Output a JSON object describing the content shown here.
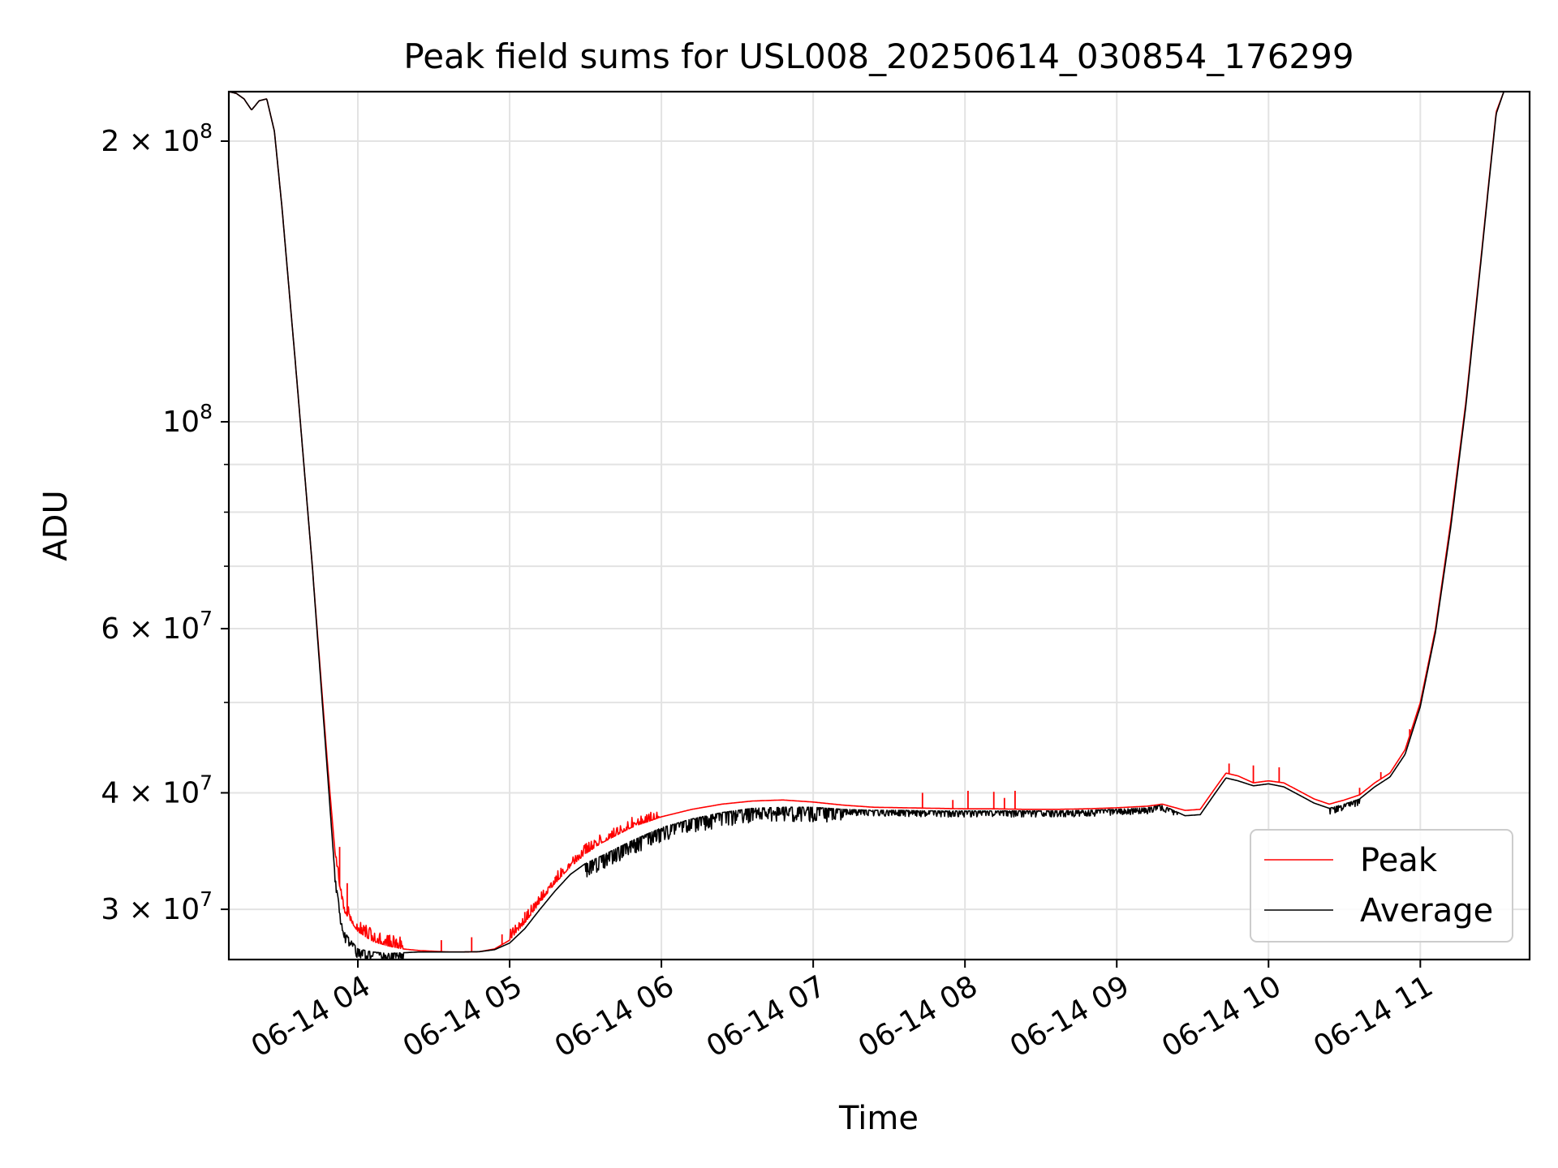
{
  "chart_data": {
    "type": "line",
    "title": "Peak field sums for USL008_20250614_030854_176299",
    "xlabel": "Time",
    "ylabel": "ADU",
    "yscale": "log",
    "ylim": [
      26500000,
      226000000
    ],
    "xlim_hours": [
      3.15,
      11.72
    ],
    "grid": true,
    "legend_position": "lower-right",
    "x_ticks": [
      {
        "hour": 4,
        "label": "06-14 04"
      },
      {
        "hour": 5,
        "label": "06-14 05"
      },
      {
        "hour": 6,
        "label": "06-14 06"
      },
      {
        "hour": 7,
        "label": "06-14 07"
      },
      {
        "hour": 8,
        "label": "06-14 08"
      },
      {
        "hour": 9,
        "label": "06-14 09"
      },
      {
        "hour": 10,
        "label": "06-14 10"
      },
      {
        "hour": 11,
        "label": "06-14 11"
      }
    ],
    "y_ticks_major": [
      {
        "value": 30000000,
        "mantissa": "3 × 10",
        "exp": "7"
      },
      {
        "value": 40000000,
        "mantissa": "4 × 10",
        "exp": "7"
      },
      {
        "value": 60000000,
        "mantissa": "6 × 10",
        "exp": "7"
      },
      {
        "value": 100000000,
        "mantissa": "10",
        "exp": "8"
      },
      {
        "value": 200000000,
        "mantissa": "2 × 10",
        "exp": "8"
      }
    ],
    "y_ticks_minor": [
      50000000,
      70000000,
      80000000,
      90000000
    ],
    "series": [
      {
        "name": "Peak",
        "color": "#ff0000",
        "hours": [
          3.15,
          3.2,
          3.25,
          3.3,
          3.35,
          3.4,
          3.45,
          3.5,
          3.6,
          3.7,
          3.8,
          3.85,
          3.9,
          4.0,
          4.1,
          4.2,
          4.3,
          4.4,
          4.5,
          4.6,
          4.7,
          4.8,
          4.9,
          5.0,
          5.1,
          5.2,
          5.3,
          5.4,
          5.5,
          5.6,
          5.8,
          6.0,
          6.2,
          6.4,
          6.6,
          6.8,
          7.0,
          7.2,
          7.4,
          7.6,
          7.8,
          8.0,
          8.2,
          8.4,
          8.6,
          8.8,
          9.0,
          9.2,
          9.3,
          9.45,
          9.55,
          9.65,
          9.72,
          9.8,
          9.9,
          10.0,
          10.1,
          10.2,
          10.3,
          10.4,
          10.5,
          10.6,
          10.7,
          10.8,
          10.9,
          11.0,
          11.1,
          11.2,
          11.3,
          11.4,
          11.45,
          11.5,
          11.55,
          11.6,
          11.72
        ],
        "values": [
          226000000,
          225000000,
          222000000,
          216000000,
          221000000,
          222000000,
          205000000,
          170000000,
          110000000,
          70000000,
          43000000,
          34500000,
          30000000,
          28400000,
          27700000,
          27400000,
          27200000,
          27100000,
          27050000,
          27000000,
          27000000,
          27020000,
          27200000,
          27800000,
          29000000,
          30500000,
          32000000,
          33300000,
          34400000,
          35300000,
          36700000,
          37700000,
          38400000,
          38900000,
          39200000,
          39300000,
          39100000,
          38800000,
          38600000,
          38550000,
          38500000,
          38450000,
          38450000,
          38400000,
          38400000,
          38450000,
          38550000,
          38700000,
          38900000,
          38300000,
          38400000,
          40500000,
          42000000,
          41700000,
          41000000,
          41200000,
          41000000,
          40200000,
          39400000,
          38900000,
          39300000,
          39800000,
          41000000,
          42000000,
          44500000,
          50000000,
          60000000,
          78000000,
          105000000,
          150000000,
          180000000,
          215000000,
          226000000,
          226000000,
          226000000
        ],
        "spikes": [
          {
            "hour": 3.88,
            "value": 35000000
          },
          {
            "hour": 3.93,
            "value": 32000000
          },
          {
            "hour": 4.55,
            "value": 27800000
          },
          {
            "hour": 4.75,
            "value": 28000000
          },
          {
            "hour": 4.95,
            "value": 28200000
          },
          {
            "hour": 5.1,
            "value": 29800000
          },
          {
            "hour": 5.3,
            "value": 32500000
          },
          {
            "hour": 5.5,
            "value": 35000000
          },
          {
            "hour": 7.72,
            "value": 40000000
          },
          {
            "hour": 7.92,
            "value": 39300000
          },
          {
            "hour": 8.02,
            "value": 40200000
          },
          {
            "hour": 8.19,
            "value": 40100000
          },
          {
            "hour": 8.26,
            "value": 39500000
          },
          {
            "hour": 8.33,
            "value": 40200000
          },
          {
            "hour": 9.74,
            "value": 43000000
          },
          {
            "hour": 9.9,
            "value": 42800000
          },
          {
            "hour": 10.07,
            "value": 42600000
          },
          {
            "hour": 10.6,
            "value": 40500000
          },
          {
            "hour": 10.74,
            "value": 42100000
          },
          {
            "hour": 10.93,
            "value": 46800000
          }
        ],
        "noise_regions": [
          {
            "from": 3.85,
            "to": 4.3,
            "amplitude": 0.03,
            "direction": "up"
          },
          {
            "from": 5.0,
            "to": 6.0,
            "amplitude": 0.025,
            "direction": "up"
          }
        ]
      },
      {
        "name": "Average",
        "color": "#000000",
        "hours": [
          3.15,
          3.2,
          3.25,
          3.3,
          3.35,
          3.4,
          3.45,
          3.5,
          3.6,
          3.7,
          3.8,
          3.85,
          3.9,
          4.0,
          4.1,
          4.2,
          4.3,
          4.4,
          4.5,
          4.6,
          4.7,
          4.8,
          4.9,
          5.0,
          5.1,
          5.2,
          5.3,
          5.4,
          5.5,
          5.6,
          5.8,
          6.0,
          6.2,
          6.4,
          6.6,
          6.8,
          7.0,
          7.2,
          7.4,
          7.6,
          7.8,
          8.0,
          8.2,
          8.4,
          8.6,
          8.8,
          9.0,
          9.2,
          9.3,
          9.45,
          9.55,
          9.65,
          9.72,
          9.8,
          9.9,
          10.0,
          10.1,
          10.2,
          10.3,
          10.4,
          10.5,
          10.6,
          10.7,
          10.8,
          10.9,
          11.0,
          11.1,
          11.2,
          11.3,
          11.4,
          11.45,
          11.5,
          11.55,
          11.6,
          11.72
        ],
        "values": [
          226000000,
          225000000,
          222000000,
          216000000,
          221000000,
          222000000,
          205000000,
          170000000,
          110000000,
          70000000,
          42000000,
          32500000,
          28500000,
          27200000,
          27000000,
          26900000,
          26950000,
          27000000,
          27000000,
          27000000,
          27000000,
          27020000,
          27150000,
          27600000,
          28600000,
          30000000,
          31400000,
          32700000,
          33600000,
          34200000,
          35500000,
          36700000,
          37500000,
          38100000,
          38500000,
          38600000,
          38600000,
          38400000,
          38300000,
          38300000,
          38250000,
          38250000,
          38250000,
          38250000,
          38250000,
          38300000,
          38400000,
          38550000,
          38800000,
          37800000,
          37900000,
          40000000,
          41500000,
          41200000,
          40700000,
          40900000,
          40600000,
          39800000,
          39000000,
          38500000,
          38900000,
          39400000,
          40600000,
          41600000,
          44000000,
          49500000,
          59500000,
          77000000,
          104000000,
          149000000,
          179000000,
          214000000,
          226000000,
          226000000,
          226000000
        ],
        "noise_regions": [
          {
            "from": 3.85,
            "to": 4.3,
            "amplitude": 0.025,
            "direction": "down"
          },
          {
            "from": 5.5,
            "to": 7.2,
            "amplitude": 0.035,
            "direction": "down"
          },
          {
            "from": 7.2,
            "to": 9.4,
            "amplitude": 0.015,
            "direction": "down"
          },
          {
            "from": 10.4,
            "to": 10.6,
            "amplitude": 0.015,
            "direction": "down"
          }
        ]
      }
    ]
  }
}
